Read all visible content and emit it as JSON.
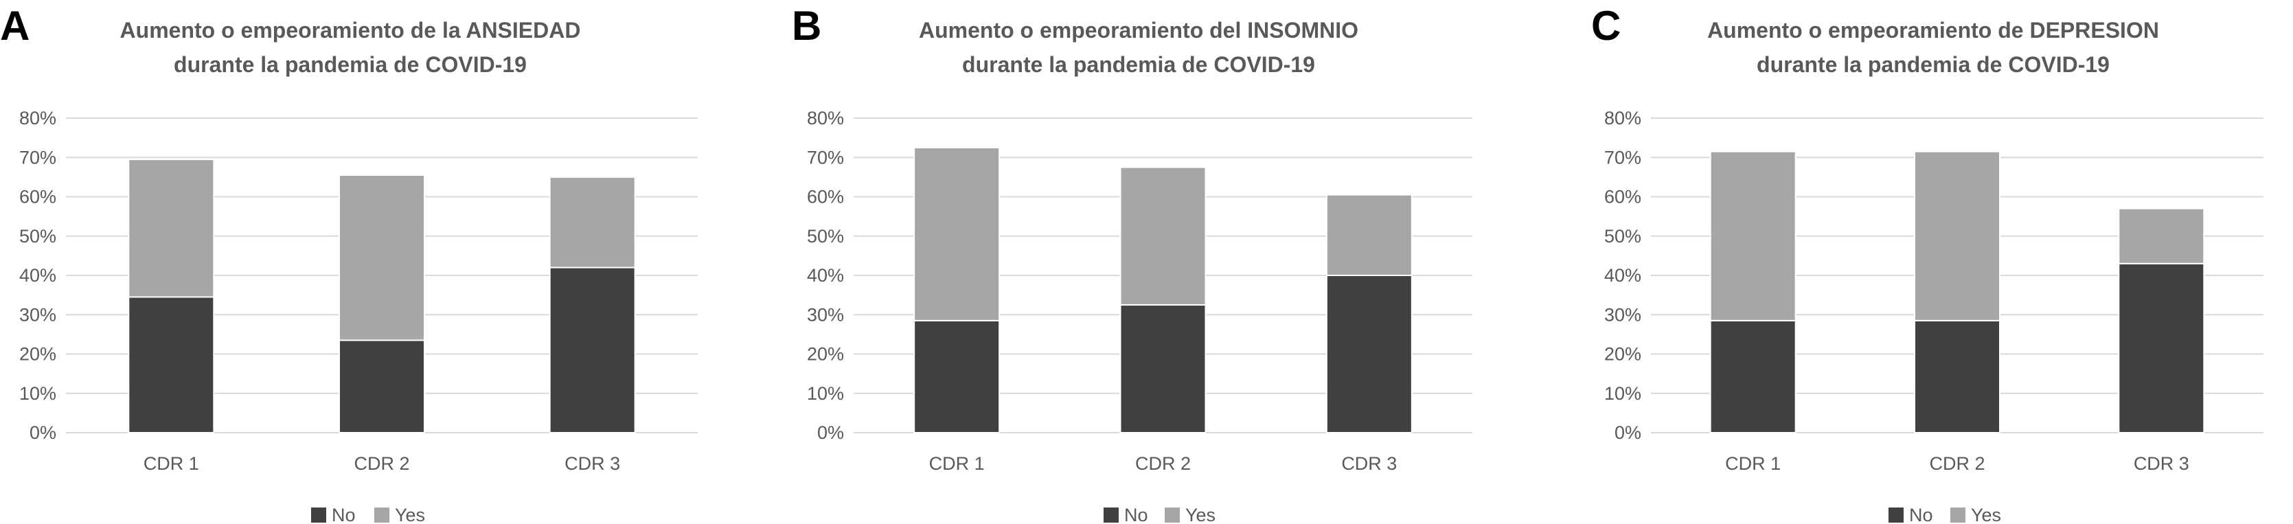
{
  "colors": {
    "no": "#404040",
    "yes": "#a6a6a6",
    "grid": "#d9d9d9",
    "text": "#595959"
  },
  "chart_data": [
    {
      "type": "bar",
      "stacked": true,
      "panel_label": "A",
      "title_line1": "Aumento o empeoramiento de la ANSIEDAD",
      "title_line2": "durante la pandemia de  COVID-19",
      "categories": [
        "CDR 1",
        "CDR 2",
        "CDR 3"
      ],
      "yticks": [
        "0%",
        "10%",
        "20%",
        "30%",
        "40%",
        "50%",
        "60%",
        "70%",
        "80%"
      ],
      "ylim": [
        0,
        80
      ],
      "grid": true,
      "legend_position": "bottom",
      "series": [
        {
          "name": "No",
          "values": [
            34.5,
            23.5,
            42
          ]
        },
        {
          "name": "Yes",
          "values": [
            35,
            42,
            23
          ]
        }
      ]
    },
    {
      "type": "bar",
      "stacked": true,
      "panel_label": "B",
      "title_line1": "Aumento o empeoramiento del INSOMNIO",
      "title_line2": "durante la pandemia de  COVID-19",
      "categories": [
        "CDR 1",
        "CDR 2",
        "CDR 3"
      ],
      "yticks": [
        "0%",
        "10%",
        "20%",
        "30%",
        "40%",
        "50%",
        "60%",
        "70%",
        "80%"
      ],
      "ylim": [
        0,
        80
      ],
      "grid": true,
      "legend_position": "bottom",
      "series": [
        {
          "name": "No",
          "values": [
            28.5,
            32.5,
            40
          ]
        },
        {
          "name": "Yes",
          "values": [
            44,
            35,
            20.5
          ]
        }
      ]
    },
    {
      "type": "bar",
      "stacked": true,
      "panel_label": "C",
      "title_line1": "Aumento o empeoramiento de DEPRESION",
      "title_line2": "durante la pandemia de  COVID-19",
      "categories": [
        "CDR 1",
        "CDR 2",
        "CDR 3"
      ],
      "yticks": [
        "0%",
        "10%",
        "20%",
        "30%",
        "40%",
        "50%",
        "60%",
        "70%",
        "80%"
      ],
      "ylim": [
        0,
        80
      ],
      "grid": true,
      "legend_position": "bottom",
      "series": [
        {
          "name": "No",
          "values": [
            28.5,
            28.5,
            43
          ]
        },
        {
          "name": "Yes",
          "values": [
            43,
            43,
            14
          ]
        }
      ]
    }
  ]
}
